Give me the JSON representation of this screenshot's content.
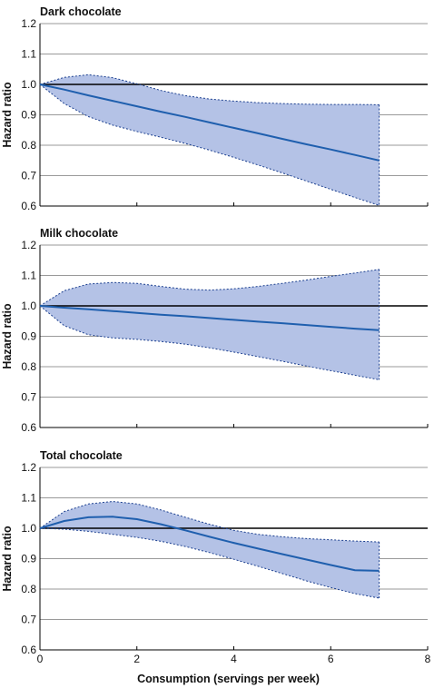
{
  "colors": {
    "band_fill": "#b4c2e6",
    "band_edge": "#1b3f8f",
    "estimate_line": "#1f5fae",
    "reference_line": "#000000",
    "grid": "#9a9a9a",
    "axis": "#000000"
  },
  "x_axis": {
    "label": "Consumption (servings per week)",
    "ticks": [
      0,
      2,
      4,
      6,
      8
    ],
    "tick_labels": [
      "0",
      "2",
      "4",
      "6",
      "8"
    ],
    "range": [
      0,
      8
    ]
  },
  "chart_data": [
    {
      "type": "line",
      "title": "Dark chocolate",
      "ylabel": "Hazard ratio",
      "xlabel": "",
      "ylim": [
        0.6,
        1.2
      ],
      "yticks": [
        0.6,
        0.7,
        0.8,
        0.9,
        1.0,
        1.1,
        1.2
      ],
      "ytick_labels": [
        "0.6",
        "0.7",
        "0.8",
        "0.9",
        "1.0",
        "1.1",
        "1.2"
      ],
      "grid": true,
      "reference_y": 1.0,
      "x": [
        0,
        0.5,
        1,
        1.5,
        2,
        2.5,
        3,
        3.5,
        4,
        4.5,
        5,
        5.5,
        6,
        6.5,
        7
      ],
      "series": [
        {
          "role": "estimate",
          "values": [
            1.0,
            0.983,
            0.964,
            0.946,
            0.928,
            0.91,
            0.893,
            0.875,
            0.857,
            0.839,
            0.821,
            0.803,
            0.786,
            0.768,
            0.75
          ]
        },
        {
          "role": "upper",
          "values": [
            1.0,
            1.023,
            1.032,
            1.022,
            1.002,
            0.98,
            0.963,
            0.952,
            0.945,
            0.94,
            0.937,
            0.935,
            0.934,
            0.934,
            0.933
          ]
        },
        {
          "role": "lower",
          "values": [
            1.0,
            0.937,
            0.894,
            0.866,
            0.845,
            0.826,
            0.806,
            0.784,
            0.76,
            0.735,
            0.709,
            0.682,
            0.655,
            0.628,
            0.602
          ]
        }
      ]
    },
    {
      "type": "line",
      "title": "Milk chocolate",
      "ylabel": "Hazard ratio",
      "xlabel": "",
      "ylim": [
        0.6,
        1.2
      ],
      "yticks": [
        0.6,
        0.7,
        0.8,
        0.9,
        1.0,
        1.1,
        1.2
      ],
      "ytick_labels": [
        "0.6",
        "0.7",
        "0.8",
        "0.9",
        "1.0",
        "1.1",
        "1.2"
      ],
      "grid": true,
      "reference_y": 1.0,
      "x": [
        0,
        0.5,
        1,
        1.5,
        2,
        2.5,
        3,
        3.5,
        4,
        4.5,
        5,
        5.5,
        6,
        6.5,
        7
      ],
      "series": [
        {
          "role": "estimate",
          "values": [
            1.0,
            0.994,
            0.989,
            0.983,
            0.977,
            0.971,
            0.966,
            0.96,
            0.954,
            0.948,
            0.943,
            0.937,
            0.931,
            0.925,
            0.92
          ]
        },
        {
          "role": "upper",
          "values": [
            1.0,
            1.05,
            1.072,
            1.077,
            1.074,
            1.064,
            1.055,
            1.052,
            1.056,
            1.064,
            1.074,
            1.085,
            1.097,
            1.108,
            1.12
          ]
        },
        {
          "role": "lower",
          "values": [
            1.0,
            0.935,
            0.905,
            0.895,
            0.89,
            0.883,
            0.874,
            0.862,
            0.848,
            0.833,
            0.818,
            0.802,
            0.787,
            0.772,
            0.757
          ]
        }
      ]
    },
    {
      "type": "line",
      "title": "Total chocolate",
      "ylabel": "Hazard ratio",
      "xlabel": "Consumption (servings per week)",
      "ylim": [
        0.6,
        1.2
      ],
      "yticks": [
        0.6,
        0.7,
        0.8,
        0.9,
        1.0,
        1.1,
        1.2
      ],
      "ytick_labels": [
        "0.6",
        "0.7",
        "0.8",
        "0.9",
        "1.0",
        "1.1",
        "1.2"
      ],
      "grid": true,
      "reference_y": 1.0,
      "x": [
        0,
        0.5,
        1,
        1.5,
        2,
        2.5,
        3,
        3.5,
        4,
        4.5,
        5,
        5.5,
        6,
        6.5,
        7
      ],
      "series": [
        {
          "role": "estimate",
          "values": [
            1.0,
            1.024,
            1.036,
            1.038,
            1.03,
            1.013,
            0.993,
            0.972,
            0.952,
            0.933,
            0.915,
            0.897,
            0.879,
            0.862,
            0.86
          ]
        },
        {
          "role": "upper",
          "values": [
            1.0,
            1.055,
            1.08,
            1.088,
            1.08,
            1.06,
            1.036,
            1.013,
            0.993,
            0.98,
            0.972,
            0.966,
            0.962,
            0.958,
            0.955
          ]
        },
        {
          "role": "lower",
          "values": [
            1.0,
            0.997,
            0.99,
            0.98,
            0.97,
            0.957,
            0.94,
            0.92,
            0.898,
            0.875,
            0.851,
            0.827,
            0.805,
            0.785,
            0.77
          ]
        }
      ]
    }
  ]
}
